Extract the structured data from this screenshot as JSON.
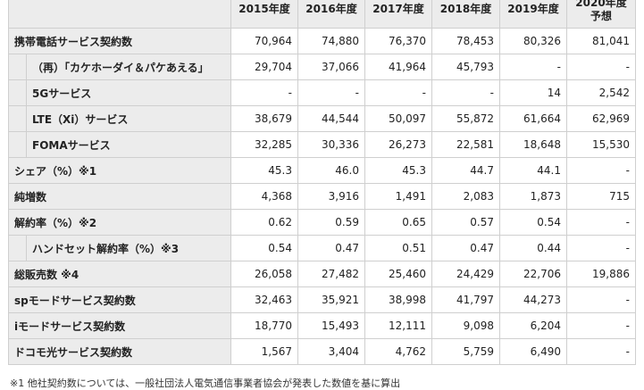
{
  "table": {
    "header": [
      "2015年度",
      "2016年度",
      "2017年度",
      "2018年度",
      "2019年度",
      "2020年度\n予想"
    ],
    "rows": [
      {
        "label": "携帯電話サービス契約数",
        "indent": 0,
        "values": [
          "70,964",
          "74,880",
          "76,370",
          "78,453",
          "80,326",
          "81,041"
        ]
      },
      {
        "label": "（再）「カケホーダイ＆パケあえる」",
        "indent": 1,
        "values": [
          "29,704",
          "37,066",
          "41,964",
          "45,793",
          "-",
          "-"
        ]
      },
      {
        "label": "5Gサービス",
        "indent": 1,
        "values": [
          "-",
          "-",
          "-",
          "-",
          "14",
          "2,542"
        ]
      },
      {
        "label": "LTE（Xi）サービス",
        "indent": 1,
        "values": [
          "38,679",
          "44,544",
          "50,097",
          "55,872",
          "61,664",
          "62,969"
        ]
      },
      {
        "label": "FOMAサービス",
        "indent": 1,
        "values": [
          "32,285",
          "30,336",
          "26,273",
          "22,581",
          "18,648",
          "15,530"
        ]
      },
      {
        "label": "シェア（%）※1",
        "indent": 0,
        "values": [
          "45.3",
          "46.0",
          "45.3",
          "44.7",
          "44.1",
          "-"
        ]
      },
      {
        "label": "純増数",
        "indent": 0,
        "values": [
          "4,368",
          "3,916",
          "1,491",
          "2,083",
          "1,873",
          "715"
        ]
      },
      {
        "label": "解約率（%）※2",
        "indent": 0,
        "values": [
          "0.62",
          "0.59",
          "0.65",
          "0.57",
          "0.54",
          "-"
        ]
      },
      {
        "label": "ハンドセット解約率（%）※3",
        "indent": 1,
        "values": [
          "0.54",
          "0.47",
          "0.51",
          "0.47",
          "0.44",
          "-"
        ]
      },
      {
        "label": "総販売数 ※4",
        "indent": 0,
        "values": [
          "26,058",
          "27,482",
          "25,460",
          "24,429",
          "22,706",
          "19,886"
        ]
      },
      {
        "label": "spモードサービス契約数",
        "indent": 0,
        "values": [
          "32,463",
          "35,921",
          "38,998",
          "41,797",
          "44,273",
          "-"
        ]
      },
      {
        "label": "iモードサービス契約数",
        "indent": 0,
        "values": [
          "18,770",
          "15,493",
          "12,111",
          "9,098",
          "6,204",
          "-"
        ]
      },
      {
        "label": "ドコモ光サービス契約数",
        "indent": 0,
        "values": [
          "1,567",
          "3,404",
          "4,762",
          "5,759",
          "6,490",
          "-"
        ]
      }
    ]
  },
  "footnote": "※1 他社契約数については、一般社団法人電気通信事業者協会が発表した数値を基に算出"
}
